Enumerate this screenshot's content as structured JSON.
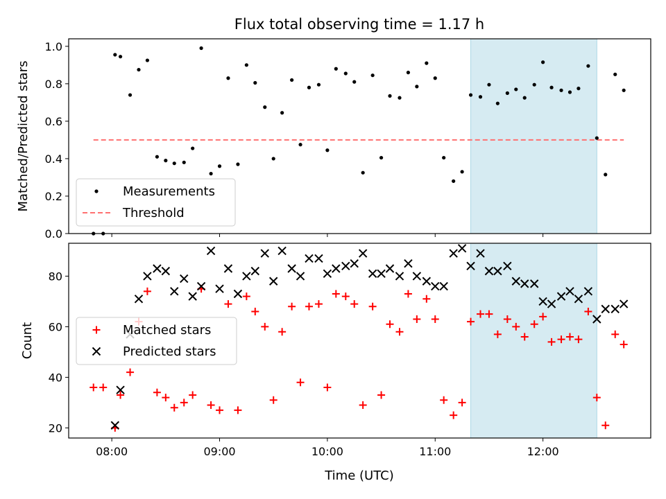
{
  "chart_data": {
    "title": "Flux total observing time = 1.17 h",
    "xlabel": "Time (UTC)",
    "x_unit": "hours UTC",
    "xlim": [
      7.6,
      13.0
    ],
    "xticks": [
      8,
      9,
      10,
      11,
      12
    ],
    "xtick_labels": [
      "08:00",
      "09:00",
      "10:00",
      "11:00",
      "12:00"
    ],
    "highlight_span": {
      "x0": 11.33,
      "x1": 12.5,
      "color": "#add8e6"
    },
    "colors": {
      "measurements": "#000000",
      "threshold": "#ff7070",
      "matched": "#ff0000",
      "predicted": "#000000",
      "span": "#add8e6"
    },
    "panels": [
      {
        "type": "scatter",
        "ylabel": "Matched/Predicted stars",
        "ylim": [
          0,
          1.04
        ],
        "yticks": [
          0.0,
          0.2,
          0.4,
          0.6,
          0.8,
          1.0
        ],
        "ytick_labels": [
          "0.0",
          "0.2",
          "0.4",
          "0.6",
          "0.8",
          "1.0"
        ],
        "legend": [
          "Measurements",
          "Threshold"
        ],
        "threshold": {
          "y": 0.5,
          "x0": 7.83,
          "x1": 12.75
        },
        "series": [
          {
            "name": "Measurements",
            "marker": "dot",
            "points": [
              [
                7.83,
                0.0
              ],
              [
                7.92,
                0.0
              ],
              [
                8.03,
                0.955
              ],
              [
                8.08,
                0.945
              ],
              [
                8.17,
                0.74
              ],
              [
                8.25,
                0.875
              ],
              [
                8.33,
                0.925
              ],
              [
                8.42,
                0.41
              ],
              [
                8.5,
                0.39
              ],
              [
                8.58,
                0.375
              ],
              [
                8.67,
                0.38
              ],
              [
                8.75,
                0.455
              ],
              [
                8.83,
                0.99
              ],
              [
                8.92,
                0.32
              ],
              [
                9.0,
                0.36
              ],
              [
                9.08,
                0.83
              ],
              [
                9.17,
                0.37
              ],
              [
                9.25,
                0.9
              ],
              [
                9.33,
                0.805
              ],
              [
                9.42,
                0.675
              ],
              [
                9.5,
                0.4
              ],
              [
                9.58,
                0.645
              ],
              [
                9.67,
                0.82
              ],
              [
                9.75,
                0.475
              ],
              [
                9.83,
                0.78
              ],
              [
                9.92,
                0.795
              ],
              [
                10.0,
                0.445
              ],
              [
                10.08,
                0.88
              ],
              [
                10.17,
                0.855
              ],
              [
                10.25,
                0.81
              ],
              [
                10.33,
                0.325
              ],
              [
                10.42,
                0.845
              ],
              [
                10.5,
                0.405
              ],
              [
                10.58,
                0.735
              ],
              [
                10.67,
                0.725
              ],
              [
                10.75,
                0.86
              ],
              [
                10.83,
                0.785
              ],
              [
                10.92,
                0.91
              ],
              [
                11.0,
                0.83
              ],
              [
                11.08,
                0.405
              ],
              [
                11.17,
                0.28
              ],
              [
                11.25,
                0.33
              ],
              [
                11.33,
                0.74
              ],
              [
                11.42,
                0.73
              ],
              [
                11.5,
                0.795
              ],
              [
                11.58,
                0.695
              ],
              [
                11.67,
                0.75
              ],
              [
                11.75,
                0.77
              ],
              [
                11.83,
                0.725
              ],
              [
                11.92,
                0.795
              ],
              [
                12.0,
                0.915
              ],
              [
                12.08,
                0.78
              ],
              [
                12.17,
                0.765
              ],
              [
                12.25,
                0.755
              ],
              [
                12.33,
                0.775
              ],
              [
                12.42,
                0.895
              ],
              [
                12.5,
                0.51
              ],
              [
                12.58,
                0.315
              ],
              [
                12.67,
                0.85
              ],
              [
                12.75,
                0.765
              ]
            ]
          }
        ]
      },
      {
        "type": "scatter",
        "ylabel": "Count",
        "ylim": [
          16,
          93
        ],
        "yticks": [
          20,
          40,
          60,
          80
        ],
        "ytick_labels": [
          "20",
          "40",
          "60",
          "80"
        ],
        "legend": [
          "Matched stars",
          "Predicted stars"
        ],
        "series": [
          {
            "name": "Matched stars",
            "marker": "plus",
            "points": [
              [
                7.83,
                36
              ],
              [
                7.92,
                36
              ],
              [
                8.03,
                20
              ],
              [
                8.08,
                33
              ],
              [
                8.17,
                42
              ],
              [
                8.25,
                62
              ],
              [
                8.33,
                74
              ],
              [
                8.42,
                34
              ],
              [
                8.5,
                32
              ],
              [
                8.58,
                28
              ],
              [
                8.67,
                30
              ],
              [
                8.75,
                33
              ],
              [
                8.83,
                75
              ],
              [
                8.92,
                29
              ],
              [
                9.0,
                27
              ],
              [
                9.08,
                69
              ],
              [
                9.17,
                27
              ],
              [
                9.25,
                72
              ],
              [
                9.33,
                66
              ],
              [
                9.42,
                60
              ],
              [
                9.5,
                31
              ],
              [
                9.58,
                58
              ],
              [
                9.67,
                68
              ],
              [
                9.75,
                38
              ],
              [
                9.83,
                68
              ],
              [
                9.92,
                69
              ],
              [
                10.0,
                36
              ],
              [
                10.08,
                73
              ],
              [
                10.17,
                72
              ],
              [
                10.25,
                69
              ],
              [
                10.33,
                29
              ],
              [
                10.42,
                68
              ],
              [
                10.5,
                33
              ],
              [
                10.58,
                61
              ],
              [
                10.67,
                58
              ],
              [
                10.75,
                73
              ],
              [
                10.83,
                63
              ],
              [
                10.92,
                71
              ],
              [
                11.0,
                63
              ],
              [
                11.08,
                31
              ],
              [
                11.17,
                25
              ],
              [
                11.25,
                30
              ],
              [
                11.33,
                62
              ],
              [
                11.42,
                65
              ],
              [
                11.5,
                65
              ],
              [
                11.58,
                57
              ],
              [
                11.67,
                63
              ],
              [
                11.75,
                60
              ],
              [
                11.83,
                56
              ],
              [
                11.92,
                61
              ],
              [
                12.0,
                64
              ],
              [
                12.08,
                54
              ],
              [
                12.17,
                55
              ],
              [
                12.25,
                56
              ],
              [
                12.33,
                55
              ],
              [
                12.42,
                66
              ],
              [
                12.5,
                32
              ],
              [
                12.58,
                21
              ],
              [
                12.67,
                57
              ],
              [
                12.75,
                53
              ]
            ]
          },
          {
            "name": "Predicted stars",
            "marker": "x",
            "points": [
              [
                8.03,
                21
              ],
              [
                8.08,
                35
              ],
              [
                8.17,
                57
              ],
              [
                8.25,
                71
              ],
              [
                8.33,
                80
              ],
              [
                8.42,
                83
              ],
              [
                8.5,
                82
              ],
              [
                8.58,
                74
              ],
              [
                8.67,
                79
              ],
              [
                8.75,
                72
              ],
              [
                8.83,
                76
              ],
              [
                8.92,
                90
              ],
              [
                9.0,
                75
              ],
              [
                9.08,
                83
              ],
              [
                9.17,
                73
              ],
              [
                9.25,
                80
              ],
              [
                9.33,
                82
              ],
              [
                9.42,
                89
              ],
              [
                9.5,
                78
              ],
              [
                9.58,
                90
              ],
              [
                9.67,
                83
              ],
              [
                9.75,
                80
              ],
              [
                9.83,
                87
              ],
              [
                9.92,
                87
              ],
              [
                10.0,
                81
              ],
              [
                10.08,
                83
              ],
              [
                10.17,
                84
              ],
              [
                10.25,
                85
              ],
              [
                10.33,
                89
              ],
              [
                10.42,
                81
              ],
              [
                10.5,
                81
              ],
              [
                10.58,
                83
              ],
              [
                10.67,
                80
              ],
              [
                10.75,
                85
              ],
              [
                10.83,
                80
              ],
              [
                10.92,
                78
              ],
              [
                11.0,
                76
              ],
              [
                11.08,
                76
              ],
              [
                11.17,
                89
              ],
              [
                11.25,
                91
              ],
              [
                11.33,
                84
              ],
              [
                11.42,
                89
              ],
              [
                11.5,
                82
              ],
              [
                11.58,
                82
              ],
              [
                11.67,
                84
              ],
              [
                11.75,
                78
              ],
              [
                11.83,
                77
              ],
              [
                11.92,
                77
              ],
              [
                12.0,
                70
              ],
              [
                12.08,
                69
              ],
              [
                12.17,
                72
              ],
              [
                12.25,
                74
              ],
              [
                12.33,
                71
              ],
              [
                12.42,
                74
              ],
              [
                12.5,
                63
              ],
              [
                12.58,
                67
              ],
              [
                12.67,
                67
              ],
              [
                12.75,
                69
              ]
            ]
          }
        ]
      }
    ]
  }
}
